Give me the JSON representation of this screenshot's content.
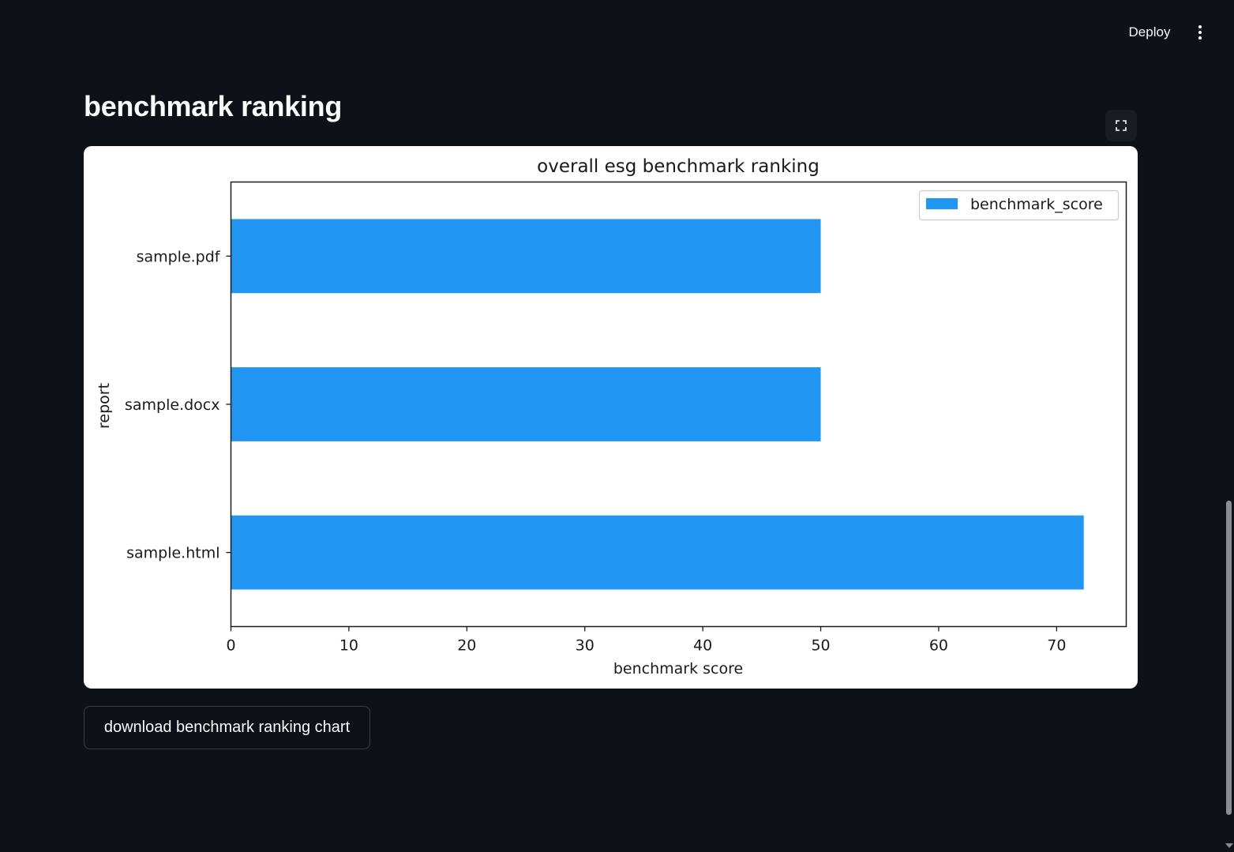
{
  "header": {
    "deploy_label": "Deploy"
  },
  "main": {
    "title": "benchmark ranking",
    "download_label": "download benchmark ranking chart"
  },
  "chart_data": {
    "type": "bar",
    "orientation": "horizontal",
    "title": "overall esg benchmark ranking",
    "xlabel": "benchmark score",
    "ylabel": "report",
    "categories": [
      "sample.pdf",
      "sample.docx",
      "sample.html"
    ],
    "series": [
      {
        "name": "benchmark_score",
        "values": [
          50,
          50,
          72.3
        ],
        "color": "#2196f3"
      }
    ],
    "xlim": [
      0,
      75.9
    ],
    "xticks": [
      0,
      10,
      20,
      30,
      40,
      50,
      60,
      70
    ],
    "grid": false,
    "legend": "top-right"
  }
}
